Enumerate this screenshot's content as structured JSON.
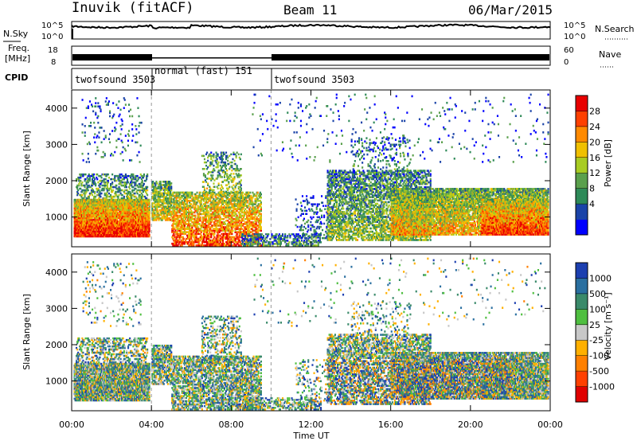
{
  "header": {
    "station": "Inuvik (fitACF)",
    "beam": "Beam 11",
    "date": "06/Mar/2015"
  },
  "top_panels": {
    "nsky_label": "N.Sky",
    "nsky_ticks": [
      "10^5",
      "10^0"
    ],
    "nsearch_label": "N.Search",
    "nsearch_ticks": [
      "10^5",
      "10^0"
    ],
    "freq_label_1": "Freq.",
    "freq_label_2": "[MHz]",
    "freq_ticks": [
      "18",
      "8"
    ],
    "nave_label": "Nave",
    "nave_ticks": [
      "60",
      "0"
    ],
    "cpid_label": "CPID",
    "cpid_segments": [
      {
        "label": "twofsound 3503",
        "start": 0,
        "end": 4
      },
      {
        "label": "normal (fast) 151",
        "start": 4,
        "end": 10
      },
      {
        "label": "twofsound 3503",
        "start": 10,
        "end": 24
      }
    ]
  },
  "chart_data": [
    {
      "type": "heatmap",
      "name": "power",
      "ylabel": "Slant Range [km]",
      "ylim": [
        180,
        4500
      ],
      "yticks": [
        1000,
        2000,
        3000,
        4000
      ],
      "xlim": [
        0,
        24
      ],
      "colorbar_label": "Power [dB]",
      "colorbar_ticks": [
        "28",
        "24",
        "20",
        "16",
        "12",
        "8",
        "4"
      ],
      "colors": [
        "#0000ff",
        "#1a43a8",
        "#2e8a58",
        "#5aa04c",
        "#a8cc22",
        "#f0c000",
        "#ff8a00",
        "#ff4000",
        "#e80000"
      ]
    },
    {
      "type": "heatmap",
      "name": "velocity",
      "ylabel": "Slant Range [km]",
      "ylim": [
        180,
        4500
      ],
      "yticks": [
        1000,
        2000,
        3000,
        4000
      ],
      "xlim": [
        0,
        24
      ],
      "colorbar_label": "Velocity [m s⁻¹]",
      "colorbar_ticks": [
        "1000",
        "500",
        "100",
        "25",
        "-25",
        "-100",
        "-500",
        "-1000"
      ],
      "colors": [
        "#1c3fb0",
        "#2a6fa0",
        "#3a8a6a",
        "#4fbf40",
        "#c8c8c8",
        "#ffb000",
        "#ff8000",
        "#ff4000",
        "#e00000"
      ]
    }
  ],
  "xaxis": {
    "label": "Time UT",
    "ticks": [
      "00:00",
      "04:00",
      "08:00",
      "12:00",
      "16:00",
      "20:00",
      "00:00"
    ]
  }
}
